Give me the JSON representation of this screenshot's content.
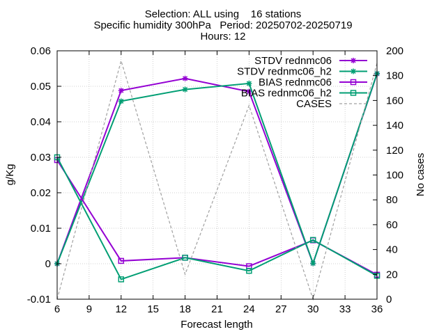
{
  "chart_data": {
    "type": "line",
    "title_lines": [
      "Selection: ALL using    16 stations",
      "Specific humidity 300hPa   Period: 20250702-20250719",
      "Hours: 12"
    ],
    "xlabel": "Forecast length",
    "ylabel": "g/Kg",
    "y2label": "No cases",
    "xlim": [
      6,
      36
    ],
    "ylim": [
      -0.01,
      0.06
    ],
    "y2lim": [
      0,
      200
    ],
    "xticks": [
      6,
      9,
      12,
      15,
      18,
      21,
      24,
      27,
      30,
      33,
      36
    ],
    "yticks": [
      "-0.01",
      "0",
      "0.01",
      "0.02",
      "0.03",
      "0.04",
      "0.05",
      "0.06"
    ],
    "y2ticks": [
      0,
      20,
      40,
      60,
      80,
      100,
      120,
      140,
      160,
      180,
      200
    ],
    "x": [
      6,
      12,
      18,
      24,
      30,
      36
    ],
    "grid": true,
    "legend_position": "top-right",
    "series": [
      {
        "name": "STDV rednmc06",
        "axis": "y",
        "marker": "star",
        "color": "#9400d3",
        "values": [
          0.0,
          0.0488,
          0.0522,
          0.0485,
          0.0001,
          0.0535
        ]
      },
      {
        "name": "STDV rednmc06_h2",
        "axis": "y",
        "marker": "star",
        "color": "#009e73",
        "values": [
          0.0,
          0.0458,
          0.0491,
          0.0508,
          0.0001,
          0.0536
        ]
      },
      {
        "name": "BIAS rednmc06",
        "axis": "y",
        "marker": "square",
        "color": "#9400d3",
        "values": [
          0.0292,
          0.0008,
          0.0017,
          -0.0007,
          0.0066,
          -0.0031
        ]
      },
      {
        "name": "BIAS rednmc06_h2",
        "axis": "y",
        "marker": "square",
        "color": "#009e73",
        "values": [
          0.03,
          -0.0044,
          0.0017,
          -0.002,
          0.0067,
          -0.0034
        ]
      },
      {
        "name": "CASES",
        "axis": "y2",
        "marker": "none",
        "color": "#a0a0a0",
        "dashed": true,
        "values": [
          0,
          192,
          20,
          156,
          0,
          190
        ]
      }
    ]
  }
}
